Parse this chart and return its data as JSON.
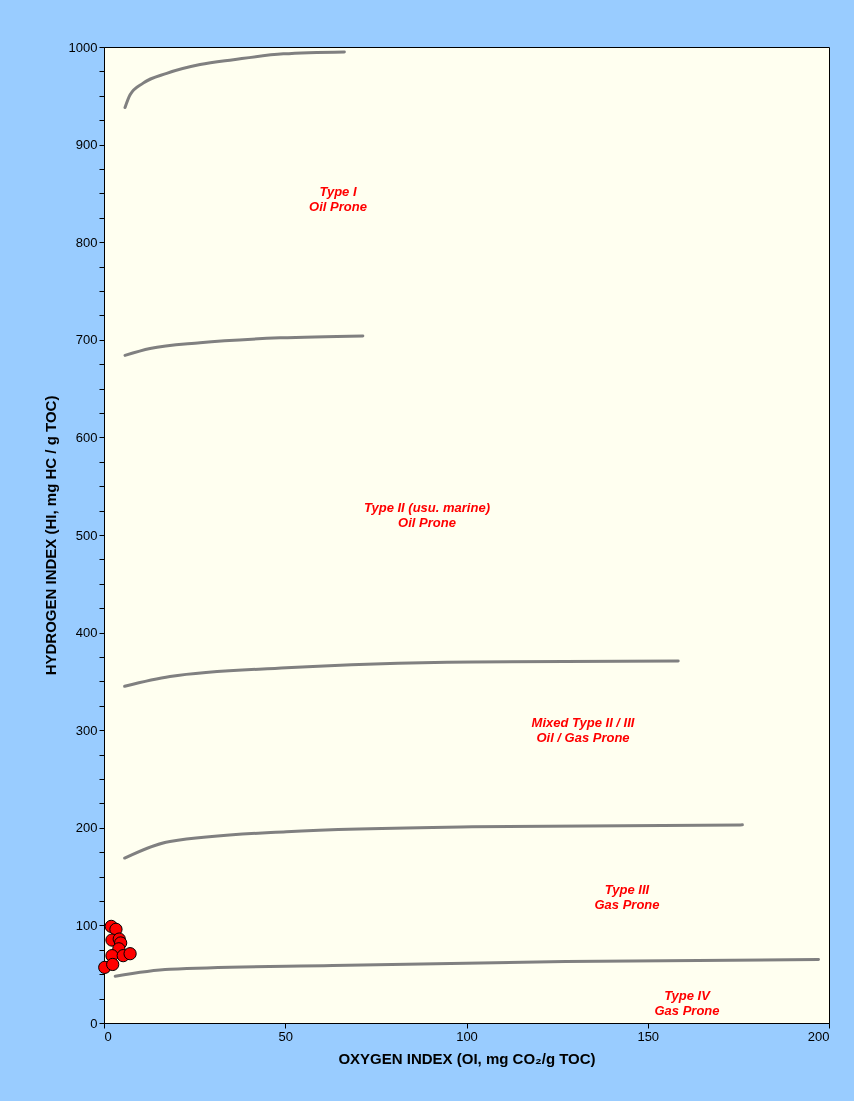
{
  "chart_data": {
    "type": "scatter",
    "xlabel": "OXYGEN  INDEX (OI, mg CO₂/g TOC)",
    "ylabel": "HYDROGEN  INDEX (HI, mg HC / g TOC)",
    "xlim": [
      0,
      200
    ],
    "ylim": [
      0,
      1000
    ],
    "xticks": [
      0,
      50,
      100,
      150,
      200
    ],
    "yticks": [
      0,
      {
        "value": 25,
        "label": null
      },
      {
        "value": 50,
        "label": null
      },
      {
        "value": 75,
        "label": null
      },
      100,
      {
        "value": 125,
        "label": null
      },
      {
        "value": 150,
        "label": null
      },
      {
        "value": 175,
        "label": null
      },
      200,
      {
        "value": 225,
        "label": null
      },
      {
        "value": 250,
        "label": null
      },
      {
        "value": 275,
        "label": null
      },
      300,
      {
        "value": 325,
        "label": null
      },
      {
        "value": 350,
        "label": null
      },
      {
        "value": 375,
        "label": null
      },
      400,
      {
        "value": 425,
        "label": null
      },
      {
        "value": 450,
        "label": null
      },
      {
        "value": 475,
        "label": null
      },
      500,
      {
        "value": 525,
        "label": null
      },
      {
        "value": 550,
        "label": null
      },
      {
        "value": 575,
        "label": null
      },
      600,
      {
        "value": 625,
        "label": null
      },
      {
        "value": 650,
        "label": null
      },
      {
        "value": 675,
        "label": null
      },
      700,
      {
        "value": 725,
        "label": null
      },
      {
        "value": 750,
        "label": null
      },
      {
        "value": 775,
        "label": null
      },
      800,
      {
        "value": 825,
        "label": null
      },
      {
        "value": 850,
        "label": null
      },
      {
        "value": 875,
        "label": null
      },
      900,
      {
        "value": 925,
        "label": null
      },
      {
        "value": 950,
        "label": null
      },
      {
        "value": 975,
        "label": null
      },
      1000
    ],
    "grid": false,
    "series": [
      {
        "type": "line",
        "color": "#808080",
        "x": [
          5.8,
          7.2,
          10.8,
          17.3,
          26.5,
          35.7,
          49.5,
          66.3
        ],
        "values": [
          938,
          951,
          963,
          973,
          982,
          987,
          993,
          995
        ]
      },
      {
        "type": "line",
        "color": "#808080",
        "x": [
          5.8,
          12.7,
          26.5,
          48.6,
          71.4
        ],
        "values": [
          684,
          691,
          697,
          702,
          704
        ]
      },
      {
        "type": "line",
        "color": "#808080",
        "x": [
          5.7,
          18.2,
          50.3,
          101.6,
          158.4
        ],
        "values": [
          345,
          355,
          364,
          370,
          371
        ]
      },
      {
        "type": "line",
        "color": "#808080",
        "x": [
          5.7,
          18.2,
          50.3,
          101.6,
          176.1
        ],
        "values": [
          169,
          186,
          196,
          201,
          203
        ]
      },
      {
        "type": "line",
        "color": "#808080",
        "x": [
          3.1,
          18.2,
          63.1,
          127.3,
          197.1
        ],
        "values": [
          48,
          55,
          59,
          63,
          65
        ]
      },
      {
        "marker": "circle",
        "color": "#ff0000",
        "x": [
          2.0,
          3.3,
          2.2,
          4.2,
          4.6,
          4.1,
          2.2,
          5.3,
          7.2,
          0.2,
          2.4
        ],
        "values": [
          99,
          96,
          85,
          86,
          82,
          76,
          69,
          69,
          71,
          57,
          60
        ]
      }
    ],
    "annotations": [
      "Type I\nOil Prone",
      "Type II (usu. marine)\nOil Prone",
      "Mixed Type II / III\nOil / Gas Prone",
      "Type III\nGas Prone",
      "Type IV\nGas Prone"
    ]
  }
}
